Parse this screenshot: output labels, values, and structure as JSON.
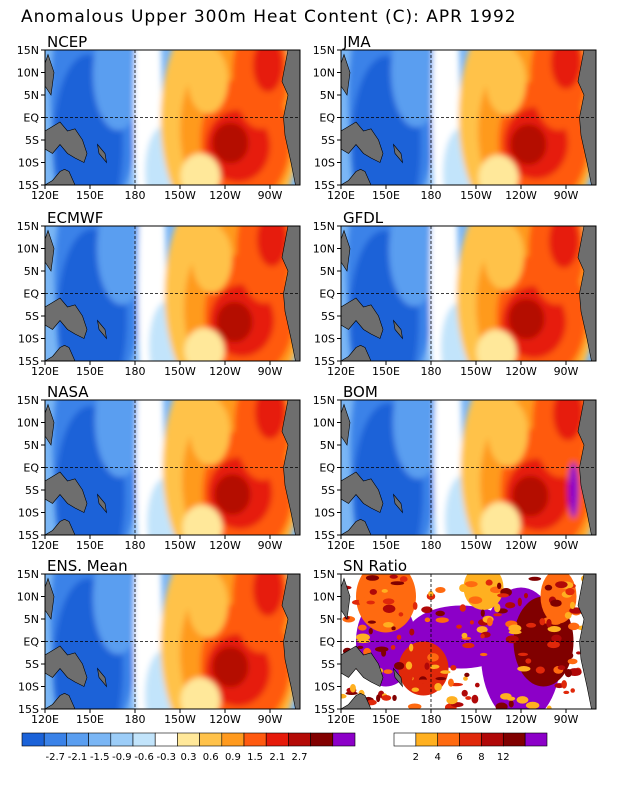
{
  "title": "Anomalous Upper 300m Heat Content (C): APR 1992",
  "x_ticks": [
    "120E",
    "150E",
    "180",
    "150W",
    "120W",
    "90W"
  ],
  "y_ticks": [
    "15N",
    "10N",
    "5N",
    "EQ",
    "5S",
    "10S",
    "15S"
  ],
  "chart_data": [
    {
      "type": "heatmap",
      "title": "NCEP",
      "field": "anomaly"
    },
    {
      "type": "heatmap",
      "title": "JMA",
      "field": "anomaly"
    },
    {
      "type": "heatmap",
      "title": "ECMWF",
      "field": "anomaly"
    },
    {
      "type": "heatmap",
      "title": "GFDL",
      "field": "anomaly"
    },
    {
      "type": "heatmap",
      "title": "NASA",
      "field": "anomaly"
    },
    {
      "type": "heatmap",
      "title": "BOM",
      "field": "anomaly"
    },
    {
      "type": "heatmap",
      "title": "ENS. Mean",
      "field": "anomaly"
    },
    {
      "type": "heatmap",
      "title": "SN Ratio",
      "field": "snr"
    }
  ],
  "colorbars": {
    "anomaly": {
      "labels": [
        "-2.7",
        "-2.1",
        "-1.5",
        "-0.9",
        "-0.6",
        "-0.3",
        "0.3",
        "0.6",
        "0.9",
        "1.5",
        "2.1",
        "2.7"
      ],
      "colors": [
        "#1b62d8",
        "#3a82e8",
        "#5a9ef0",
        "#7ab6f5",
        "#9ccdf8",
        "#c2e4fb",
        "#ffffff",
        "#ffe89a",
        "#ffc24a",
        "#ff9a1e",
        "#ff5a10",
        "#e61a0a",
        "#b40a06",
        "#820000",
        "#8c00c8"
      ]
    },
    "snr": {
      "labels": [
        "2",
        "4",
        "6",
        "8",
        "12"
      ],
      "colors": [
        "#ffffff",
        "#ffb020",
        "#ff6a10",
        "#e0280a",
        "#b00808",
        "#800000",
        "#8c00c8"
      ]
    }
  }
}
